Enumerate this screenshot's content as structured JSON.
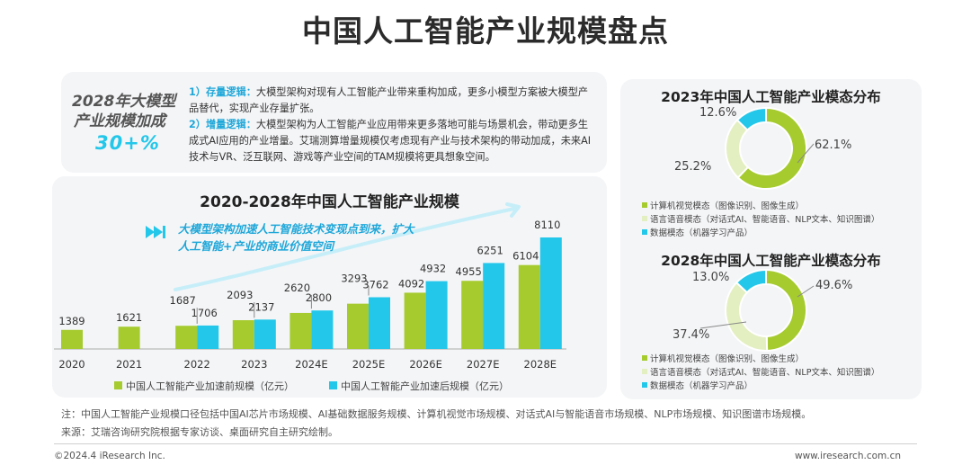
{
  "title": "中国人工智能产业规模盘点",
  "badge": {
    "line1": "2028年大模型",
    "line2": "产业规模加成",
    "value": "30+%"
  },
  "logic": [
    {
      "key": "1）存量逻辑：",
      "text": "大模型架构对现有人工智能产业带来重构加成，更多小模型方案被大模型产品替代，实现产业存量扩张。"
    },
    {
      "key": "2）增量逻辑：",
      "text": "大模型架构为人工智能产业应用带来更多落地可能与场景机会，带动更多生成式AI应用的产业增量。艾瑞测算增量规模仅考虑现有产业与技术架构的带动加成，未来AI技术与VR、泛互联网、游戏等产业空间的TAM规模将更具想象空间。"
    }
  ],
  "annotation": {
    "line1": "大模型架构加速人工智能技术变现点到来，扩大",
    "line2": "人工智能+产业的商业价值空间"
  },
  "colors": {
    "green": "#a5cb2e",
    "blue": "#22c7ea",
    "blue_light": "#c6eef9",
    "green_light": "#e3efc0"
  },
  "chart_data": [
    {
      "type": "bar",
      "title": "2020-2028年中国人工智能产业规模",
      "categories": [
        "2020",
        "2021",
        "2022",
        "2023",
        "2024E",
        "2025E",
        "2026E",
        "2027E",
        "2028E"
      ],
      "series": [
        {
          "name": "中国人工智能产业加速前规模（亿元）",
          "values": [
            1389,
            1621,
            1687,
            2093,
            2620,
            3293,
            4092,
            4955,
            6104
          ]
        },
        {
          "name": "中国人工智能产业加速后规模（亿元）",
          "values": [
            null,
            null,
            1706,
            2137,
            2800,
            3762,
            4932,
            6251,
            8110
          ]
        }
      ],
      "ylim": [
        0,
        8110
      ]
    },
    {
      "type": "pie",
      "title": "2023年中国人工智能产业模态分布",
      "labels": [
        "计算机视觉模态（图像识别、图像生成）",
        "语言语音模态（对话式AI、智能语音、NLP文本、知识图谱）",
        "数据模态（机器学习产品）"
      ],
      "values": [
        62.1,
        25.2,
        12.6
      ],
      "value_labels": [
        "62.1%",
        "25.2%",
        "12.6%"
      ]
    },
    {
      "type": "pie",
      "title": "2028年中国人工智能产业模态分布",
      "labels": [
        "计算机视觉模态（图像识别、图像生成）",
        "语言语音模态（对话式AI、智能语音、NLP文本、知识图谱）",
        "数据模态（机器学习产品）"
      ],
      "values": [
        49.6,
        37.4,
        13.0
      ],
      "value_labels": [
        "49.6%",
        "37.4%",
        "13.0%"
      ]
    }
  ],
  "footnote": "注：中国人工智能产业规模口径包括中国AI芯片市场规模、AI基础数据服务规模、计算机视觉市场规模、对话式AI与智能语音市场规模、NLP市场规模、知识图谱市场规模。",
  "source": "来源：艾瑞咨询研究院根据专家访谈、桌面研究自主研究绘制。",
  "footer_left": "©2024.4 iResearch Inc.",
  "footer_right": "www.iresearch.com.cn"
}
